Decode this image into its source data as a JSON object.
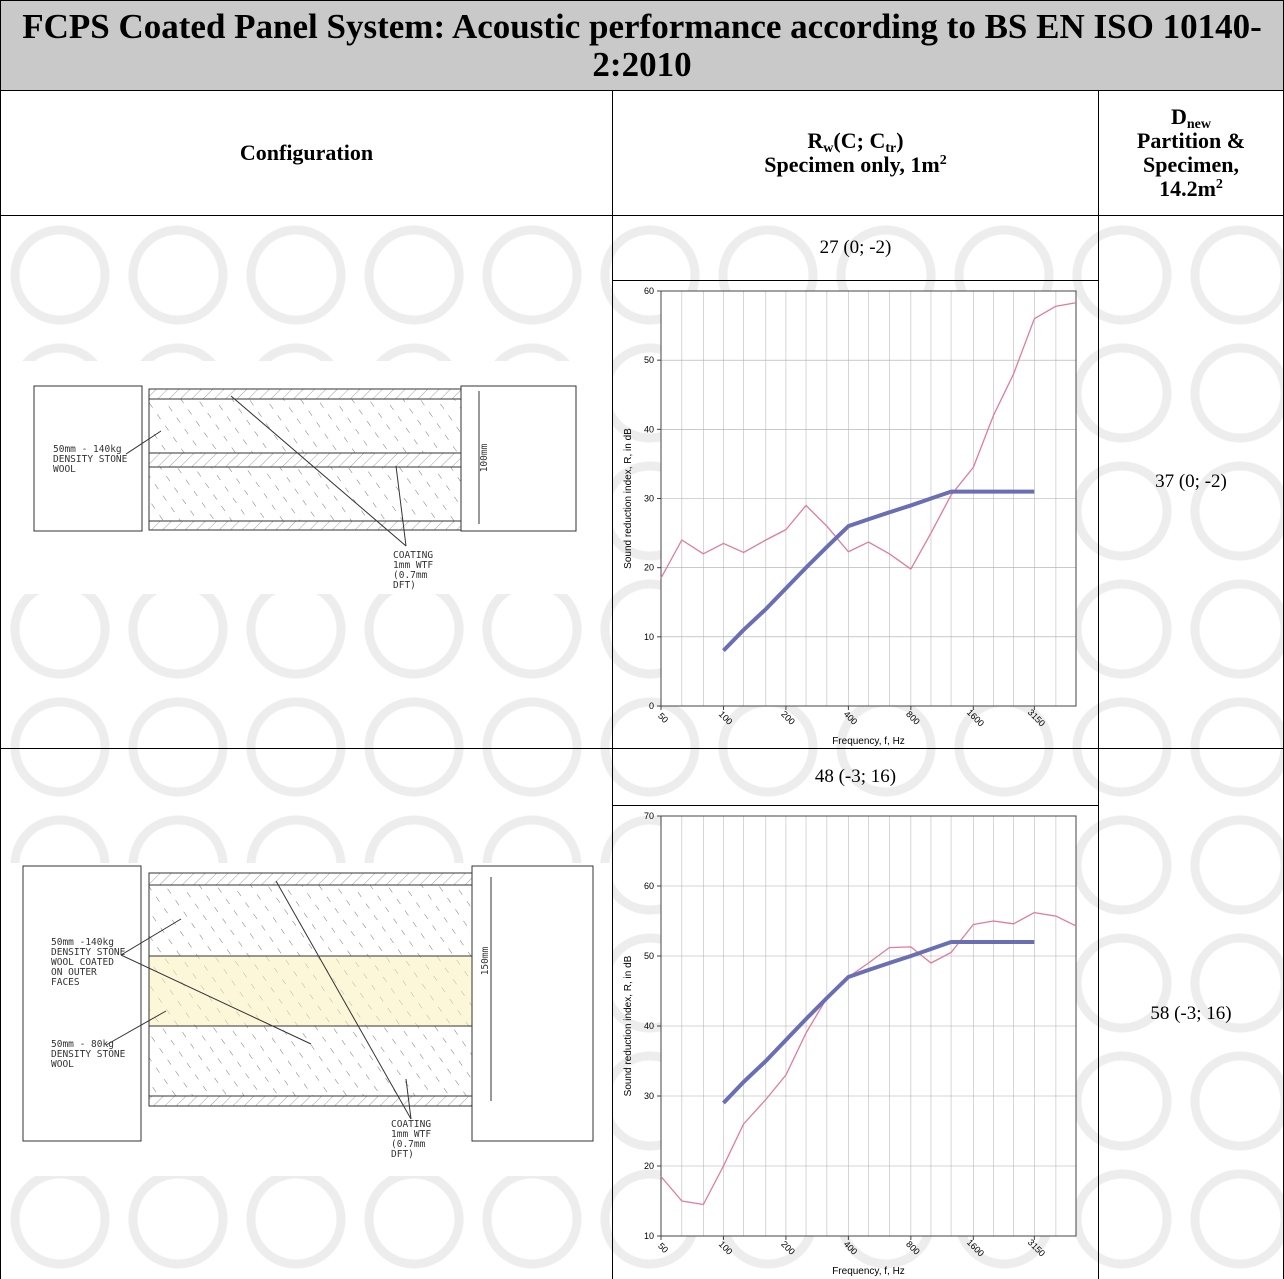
{
  "header": {
    "title": "FCPS Coated Panel System: Acoustic performance according to BS EN ISO 10140-2:2010",
    "columns": [
      "Configuration",
      {
        "line1": [
          "R",
          "w",
          "(C; C",
          "tr",
          ")"
        ],
        "line2": [
          "Specimen only, 1m",
          "2"
        ]
      },
      {
        "line1": [
          "D",
          "new"
        ],
        "line2": "Partition &",
        "line3": "Specimen,",
        "line4": [
          "14.2m",
          "2"
        ]
      }
    ]
  },
  "rows": [
    {
      "configuration": {
        "labels": [
          [
            "50mm - 140kg",
            "DENSITY STONE",
            "WOOL"
          ],
          [
            "COATING",
            "1mm WTF",
            "(0.7mm",
            "DFT)"
          ],
          [
            "100mm"
          ]
        ]
      },
      "rw": "27 (0; -2)",
      "chart": {
        "type": "line",
        "ylabel": "Sound reduction index, R, in dB",
        "xlabel": "Frequency, f, Hz",
        "x": [
          50,
          63,
          80,
          100,
          125,
          160,
          200,
          250,
          315,
          400,
          500,
          630,
          800,
          1000,
          1250,
          1600,
          2000,
          2500,
          3150,
          4000,
          5000
        ],
        "xscale": "log",
        "xlim": [
          50,
          5000
        ],
        "xticks": [
          50,
          100,
          200,
          400,
          800,
          1600,
          3150
        ],
        "ylim": [
          0,
          60
        ],
        "yticks": [
          0,
          10,
          20,
          30,
          40,
          50,
          60
        ],
        "grid": true,
        "series": [
          {
            "color": "#e07a9f",
            "values": [
              18.5,
              24,
              22,
              23.5,
              22.2,
              24,
              25.5,
              29,
              26,
              22.3,
              23.7,
              22,
              19.8,
              25,
              30.5,
              34.5,
              42,
              48,
              56,
              57.8,
              58.3
            ]
          },
          {
            "color": "#6a6fb3",
            "values": [
              null,
              null,
              null,
              8,
              11,
              14,
              17,
              20,
              23,
              26,
              27,
              28,
              29,
              30,
              31,
              31,
              31,
              31,
              31,
              null,
              null
            ]
          }
        ]
      },
      "dnew": "37 (0; -2)"
    },
    {
      "configuration": {
        "labels": [
          [
            "50mm -140kg",
            "DENSITY STONE",
            "WOOL COATED",
            "ON OUTER",
            "FACES"
          ],
          [
            "50mm - 80kg",
            "DENSITY STONE",
            "WOOL"
          ],
          [
            "COATING",
            "1mm WTF",
            "(0.7mm",
            "DFT)"
          ],
          [
            "150mm"
          ]
        ]
      },
      "rw": "48 (-3; 16)",
      "chart": {
        "type": "line",
        "ylabel": "Sound reduction index, R, in dB",
        "xlabel": "Frequency, f, Hz",
        "x": [
          50,
          63,
          80,
          100,
          125,
          160,
          200,
          250,
          315,
          400,
          500,
          630,
          800,
          1000,
          1250,
          1600,
          2000,
          2500,
          3150,
          4000,
          5000
        ],
        "xscale": "log",
        "xlim": [
          50,
          5000
        ],
        "xticks": [
          50,
          100,
          200,
          400,
          800,
          1600,
          3150
        ],
        "ylim": [
          10,
          70
        ],
        "yticks": [
          10,
          20,
          30,
          40,
          50,
          60,
          70
        ],
        "grid": true,
        "series": [
          {
            "color": "#e07a9f",
            "values": [
              18.5,
              15,
              14.5,
              20,
              26,
              29.5,
              33,
              39,
              44,
              47,
              49,
              51.2,
              51.3,
              49,
              50.5,
              54.5,
              55,
              54.6,
              56.2,
              55.7,
              54.3
            ]
          },
          {
            "color": "#6a6fb3",
            "values": [
              null,
              null,
              null,
              29,
              32,
              35,
              38,
              41,
              44,
              47,
              48,
              49,
              50,
              51,
              52,
              52,
              52,
              52,
              52,
              null,
              null
            ]
          }
        ]
      },
      "dnew": "58 (-3; 16)"
    }
  ]
}
